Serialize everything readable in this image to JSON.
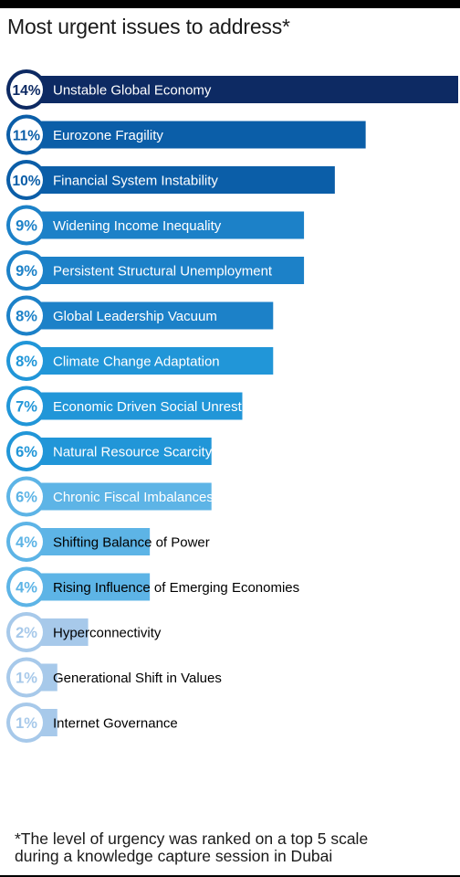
{
  "chart_data": {
    "type": "bar",
    "orientation": "horizontal",
    "title": "Most urgent issues to address*",
    "footnote_line1": "*The level of urgency was ranked on a top 5 scale",
    "footnote_line2": "during a knowledge capture session in Dubai",
    "value_suffix": "%",
    "categories": [
      "Unstable Global Economy",
      "Eurozone Fragility",
      "Financial System Instability",
      "Widening Income Inequality",
      "Persistent Structural Unemployment",
      "Global Leadership Vacuum",
      "Climate Change Adaptation",
      "Economic Driven Social Unrest",
      "Natural Resource Scarcity",
      "Chronic Fiscal Imbalances",
      "Shifting Balance of Power",
      "Rising Influence of Emerging Economies",
      "Hyperconnectivity",
      "Generational Shift in Values",
      "Internet Governance"
    ],
    "values": [
      14,
      11,
      10,
      9,
      9,
      8,
      8,
      7,
      6,
      6,
      4,
      4,
      2,
      1,
      1
    ],
    "colors": [
      "#0d2a63",
      "#0b5ea8",
      "#0b5ea8",
      "#1c81c8",
      "#1c81c8",
      "#1c81c8",
      "#2196d8",
      "#2196d8",
      "#2196d8",
      "#5db4e6",
      "#5db4e6",
      "#5db4e6",
      "#a7c9ea",
      "#a7c9ea",
      "#a7c9ea"
    ],
    "label_colors": [
      "#ffffff",
      "#ffffff",
      "#ffffff",
      "#ffffff",
      "#ffffff",
      "#ffffff",
      "#ffffff",
      "#ffffff",
      "#ffffff",
      "#ffffff",
      "#000000",
      "#000000",
      "#000000",
      "#000000",
      "#000000"
    ],
    "xlim": [
      0,
      14
    ]
  }
}
